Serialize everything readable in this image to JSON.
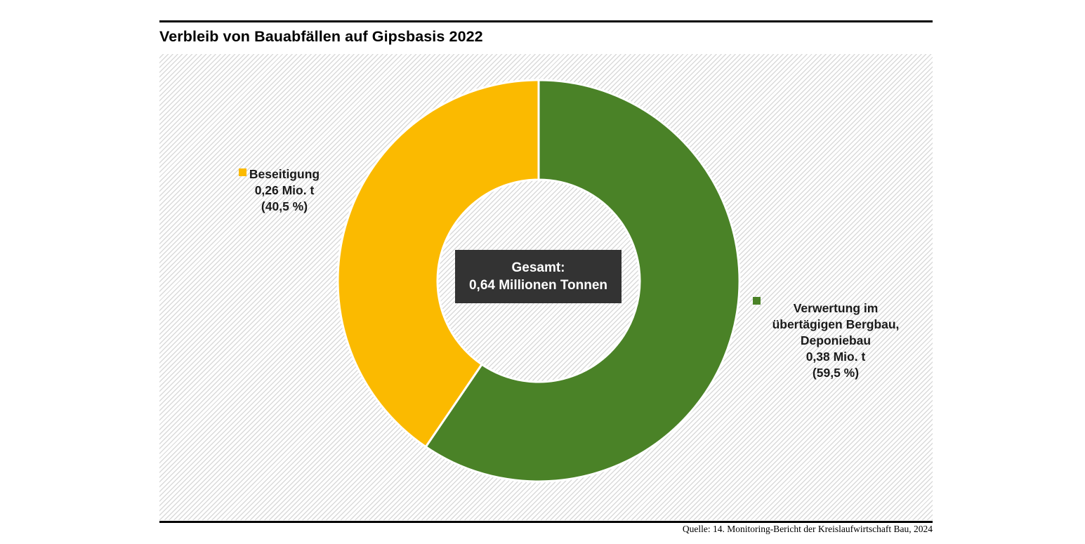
{
  "title": "Verbleib von Bauabfällen auf Gipsbasis 2022",
  "source": "Quelle: 14. Monitoring-Bericht der Kreislaufwirtschaft Bau, 2024",
  "center_label": {
    "line1": "Gesamt:",
    "line2": "0,64 Millionen Tonnen"
  },
  "labels": {
    "beseitigung": {
      "lines": [
        "Beseitigung",
        "0,26 Mio. t",
        "(40,5 %)"
      ]
    },
    "verwertung": {
      "lines": [
        "Verwertung im",
        "übertägigen Bergbau,",
        "Deponiebau",
        "0,38 Mio. t",
        "(59,5 %)"
      ]
    }
  },
  "colors": {
    "green": "#4A8227",
    "yellow": "#FBBA00",
    "center_box": "#333333",
    "hatch_gray": "#DADADA",
    "text": "#1A1A1A"
  },
  "chart_data": {
    "type": "pie",
    "donut": true,
    "inner_radius_ratio": 0.5,
    "start_angle_deg": 0,
    "direction": "clockwise",
    "title": "Verbleib von Bauabfällen auf Gipsbasis 2022",
    "unit": "Mio. t",
    "total": {
      "label": "Gesamt:",
      "value": 0.64,
      "value_text": "0,64 Millionen Tonnen"
    },
    "slices": [
      {
        "name": "Verwertung im übertägigen Bergbau, Deponiebau",
        "value": 0.38,
        "percent": 59.5,
        "color": "#4A8227"
      },
      {
        "name": "Beseitigung",
        "value": 0.26,
        "percent": 40.5,
        "color": "#FBBA00"
      }
    ],
    "legend_position": "labels beside slices, left and right of donut",
    "source": "Quelle: 14. Monitoring-Bericht der Kreislaufwirtschaft Bau, 2024"
  }
}
